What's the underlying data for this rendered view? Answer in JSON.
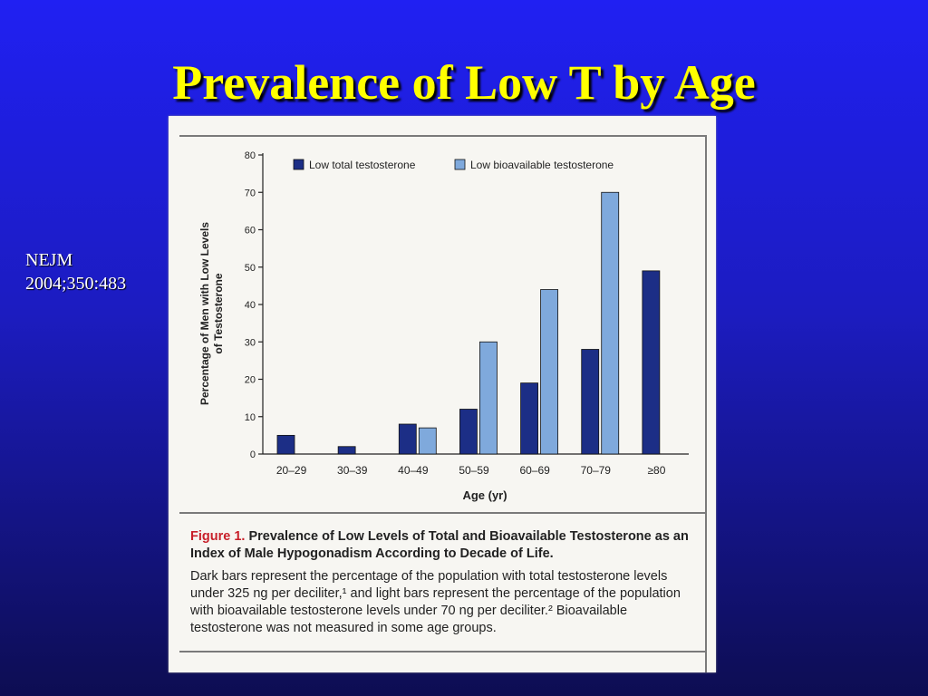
{
  "slide": {
    "title": "Prevalence of Low T by Age",
    "citation_line1": "NEJM",
    "citation_line2": "2004;350:483"
  },
  "chart_data": {
    "type": "bar",
    "ylabel_line1": "Percentage of Men with Low Levels",
    "ylabel_line2": "of Testosterone",
    "xlabel": "Age (yr)",
    "categories": [
      "20–29",
      "30–39",
      "40–49",
      "50–59",
      "60–69",
      "70–79",
      "≥80"
    ],
    "series": [
      {
        "name": "Low total testosterone",
        "color": "#1c2e86",
        "values": [
          5,
          2,
          8,
          12,
          19,
          28,
          49
        ]
      },
      {
        "name": "Low bioavailable testosterone",
        "color": "#7fa9dc",
        "values": [
          null,
          null,
          7,
          30,
          44,
          70,
          null
        ]
      }
    ],
    "ylim": [
      0,
      80
    ],
    "yticks": [
      0,
      10,
      20,
      30,
      40,
      50,
      60,
      70,
      80
    ],
    "legend_position": "top",
    "grid": false
  },
  "caption": {
    "label": "Figure 1.",
    "heading": "Prevalence of Low Levels of Total and Bioavailable Testosterone as an Index of Male Hypogonadism According to Decade of Life.",
    "body": "Dark bars represent the percentage of the population with total testosterone levels under 325 ng per deciliter,¹ and light bars represent the percentage of the population with bioavailable testosterone levels under 70 ng per deciliter.² Bioavailable testosterone was not measured in some age groups."
  }
}
